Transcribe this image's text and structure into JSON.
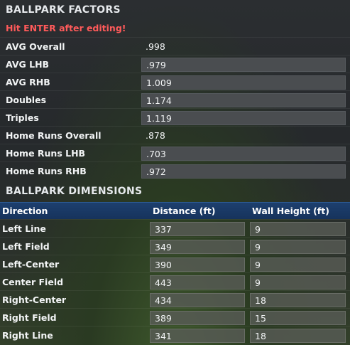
{
  "factors": {
    "title": "BALLPARK FACTORS",
    "notice": "Hit ENTER after editing!",
    "rows": [
      {
        "label": "AVG Overall",
        "value": ".998"
      },
      {
        "label": "AVG LHB",
        "value": ".979"
      },
      {
        "label": "AVG RHB",
        "value": "1.009"
      },
      {
        "label": "Doubles",
        "value": "1.174"
      },
      {
        "label": "Triples",
        "value": "1.119"
      },
      {
        "label": "Home Runs Overall",
        "value": ".878"
      },
      {
        "label": "Home Runs LHB",
        "value": ".703"
      },
      {
        "label": "Home Runs RHB",
        "value": ".972"
      }
    ]
  },
  "dimensions": {
    "title": "BALLPARK DIMENSIONS",
    "columns": {
      "direction": "Direction",
      "distance": "Distance (ft)",
      "wall": "Wall Height (ft)"
    },
    "rows": [
      {
        "direction": "Left Line",
        "distance": "337",
        "wall": "9"
      },
      {
        "direction": "Left Field",
        "distance": "349",
        "wall": "9"
      },
      {
        "direction": "Left-Center",
        "distance": "390",
        "wall": "9"
      },
      {
        "direction": "Center Field",
        "distance": "443",
        "wall": "9"
      },
      {
        "direction": "Right-Center",
        "distance": "434",
        "wall": "18"
      },
      {
        "direction": "Right Field",
        "distance": "389",
        "wall": "15"
      },
      {
        "direction": "Right Line",
        "distance": "341",
        "wall": "18"
      }
    ]
  },
  "colors": {
    "notice": "#ff5a5a",
    "header_bar": "#1d3f6e"
  }
}
